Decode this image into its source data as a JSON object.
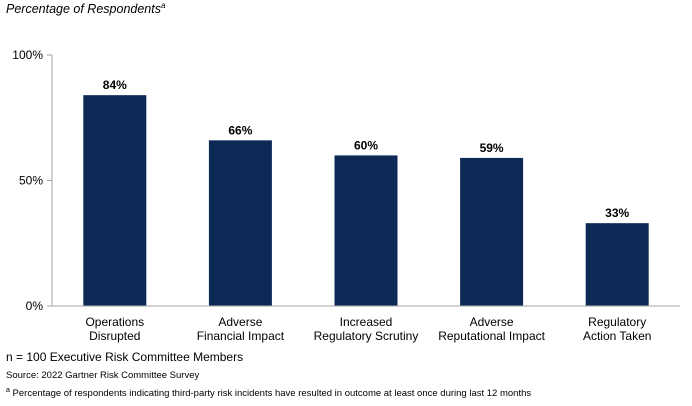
{
  "chart_data": {
    "type": "bar",
    "title": "Percentage of Respondents",
    "title_marker": "a",
    "categories": [
      [
        "Operations",
        "Disrupted"
      ],
      [
        "Adverse",
        "Financial Impact"
      ],
      [
        "Increased",
        "Regulatory Scrutiny"
      ],
      [
        "Adverse",
        "Reputational Impact"
      ],
      [
        "Regulatory",
        "Action Taken"
      ]
    ],
    "values": [
      84,
      66,
      60,
      59,
      33
    ],
    "data_labels": [
      "84%",
      "66%",
      "60%",
      "59%",
      "33%"
    ],
    "ylim": [
      0,
      100
    ],
    "yticks": [
      0,
      50,
      100
    ],
    "ytick_labels": [
      "0%",
      "50%",
      "100%"
    ],
    "bar_color": "#0d2a57",
    "axis_color": "#a6a6a6",
    "grid": false,
    "legend": "none"
  },
  "notes": {
    "sample": "n = 100 Executive Risk Committee Members",
    "source": "Source: 2022 Gartner Risk Committee Survey",
    "footnote_marker": "a",
    "footnote": " Percentage of respondents indicating third-party risk incidents have resulted in outcome at least once during last 12 months"
  }
}
